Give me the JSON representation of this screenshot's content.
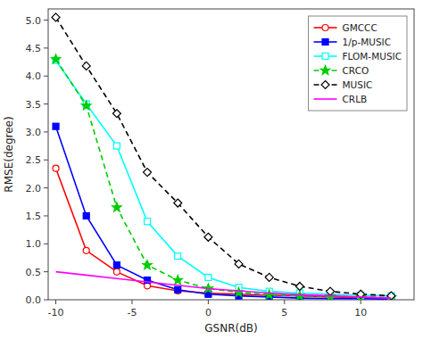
{
  "chart_data": {
    "type": "line",
    "title": "",
    "xlabel": "GSNR(dB)",
    "ylabel": "RMSE(degree)",
    "x": [
      -10,
      -8,
      -6,
      -4,
      -2,
      0,
      2,
      4,
      6,
      8,
      10,
      12
    ],
    "series": [
      {
        "name": "GMCCC",
        "color": "#ff0000",
        "marker": "open-circle",
        "line_style": "solid",
        "values": [
          2.35,
          0.88,
          0.5,
          0.25,
          0.16,
          0.12,
          0.1,
          0.08,
          0.07,
          0.05,
          0.04,
          0.03
        ]
      },
      {
        "name": "1/p-MUSIC",
        "color": "#0000ff",
        "marker": "square",
        "line_style": "solid",
        "values": [
          3.1,
          1.5,
          0.62,
          0.35,
          0.18,
          0.1,
          0.07,
          0.05,
          0.03,
          0.02,
          0.02,
          0.01
        ]
      },
      {
        "name": "FLOM-MUSIC",
        "color": "#00ffff",
        "marker": "open-square",
        "line_style": "solid",
        "values": [
          4.28,
          3.5,
          2.75,
          1.4,
          0.78,
          0.4,
          0.22,
          0.15,
          0.12,
          0.1,
          0.08,
          0.07
        ]
      },
      {
        "name": "CRCO",
        "color": "#00cc00",
        "marker": "star",
        "line_style": "dashed",
        "values": [
          4.3,
          3.47,
          1.65,
          0.62,
          0.35,
          0.2,
          0.13,
          0.09,
          0.07,
          0.06,
          0.05,
          0.04
        ]
      },
      {
        "name": "MUSIC",
        "color": "#000000",
        "marker": "open-diamond",
        "line_style": "dashed",
        "values": [
          5.05,
          4.18,
          3.33,
          2.28,
          1.73,
          1.12,
          0.64,
          0.4,
          0.24,
          0.15,
          0.1,
          0.07
        ]
      },
      {
        "name": "CRLB",
        "color": "#ff00ff",
        "marker": "none",
        "line_style": "solid",
        "values": [
          0.5,
          0.44,
          0.38,
          0.32,
          0.26,
          0.2,
          0.16,
          0.12,
          0.09,
          0.07,
          0.05,
          0.03
        ]
      }
    ],
    "xlim": [
      -10.5,
      13.5
    ],
    "ylim": [
      0,
      5.2
    ],
    "xticks": [
      -10,
      -5,
      0,
      5,
      10
    ],
    "yticks": [
      {
        "value": 0,
        "label": "0.0"
      },
      0.5,
      {
        "value": 1.0,
        "label": "1.0"
      },
      1.5,
      {
        "value": 2.0,
        "label": "2.0"
      },
      2.5,
      {
        "value": 3.0,
        "label": "3.0"
      },
      3.5,
      {
        "value": 4.0,
        "label": "4.0"
      },
      4.5,
      {
        "value": 5.0,
        "label": "5.0"
      }
    ],
    "legend": "upper right",
    "grid": false
  }
}
